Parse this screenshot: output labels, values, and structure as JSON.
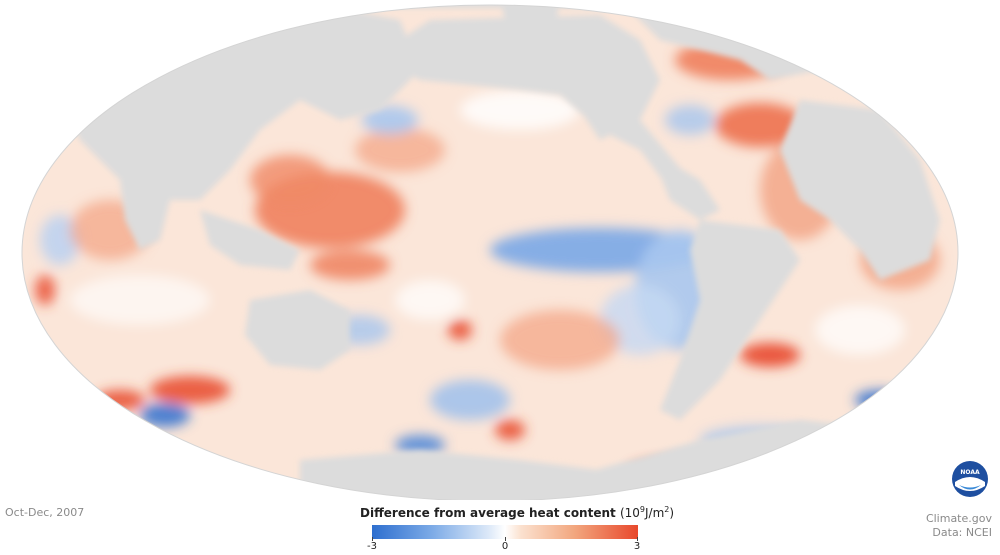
{
  "map": {
    "period": "Oct-Dec, 2007",
    "land_color": "#dcdcdc",
    "ocean_neutral_color": "#ffffff",
    "warm_color": "#e8482c",
    "cool_color": "#2e6fcf"
  },
  "legend": {
    "title": "Difference from average heat content",
    "unit_prefix": "(10",
    "unit_exp": "9",
    "unit_mid": "J/m",
    "unit_exp2": "2",
    "unit_suffix": ")",
    "min_label": "-3",
    "mid_label": "0",
    "max_label": "3"
  },
  "credits": {
    "source": "Climate.gov",
    "data": "Data: NCEI"
  },
  "logo": {
    "text": "NOAA"
  }
}
